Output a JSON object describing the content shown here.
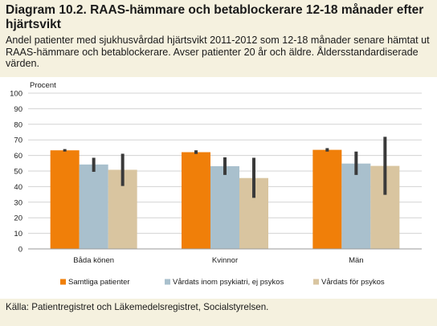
{
  "title": "Diagram 10.2. RAAS-hämmare och betablockerare 12-18 månader efter hjärtsvikt",
  "subtitle": "Andel patienter med sjukhusvårdad hjärtsvikt 2011-2012 som 12-18 månader senare hämtat ut RAAS-hämmare och betablockerare. Avser patienter 20 år och äldre. Åldersstandardiserade värden.",
  "source": "Källa: Patientregistret och Läkemedelsregistret, Socialstyrelsen.",
  "chart_data": {
    "type": "bar",
    "ylabel": "Procent",
    "ylim": [
      0,
      100
    ],
    "yticks": [
      0,
      10,
      20,
      30,
      40,
      50,
      60,
      70,
      80,
      90,
      100
    ],
    "grid": true,
    "legend": "bottom",
    "categories": [
      "Båda könen",
      "Kvinnor",
      "Män"
    ],
    "series": [
      {
        "name": "Samtliga patienter",
        "color": "#f07f09",
        "values": [
          63.3,
          62.1,
          63.6
        ],
        "error_low": [
          62.5,
          61.0,
          62.5
        ],
        "error_high": [
          64.1,
          63.3,
          64.7
        ]
      },
      {
        "name": "Vårdats inom psykiatri, ej psykos",
        "color": "#a9c0cd",
        "values": [
          54.2,
          53.1,
          54.8
        ],
        "error_low": [
          49.5,
          47.5,
          47.5
        ],
        "error_high": [
          58.5,
          58.8,
          62.5
        ]
      },
      {
        "name": "Vårdats för psykos",
        "color": "#d9c5a0",
        "values": [
          50.8,
          45.5,
          53.3
        ],
        "error_low": [
          40.4,
          32.8,
          34.7
        ],
        "error_high": [
          61.1,
          58.5,
          72.0
        ]
      }
    ]
  }
}
